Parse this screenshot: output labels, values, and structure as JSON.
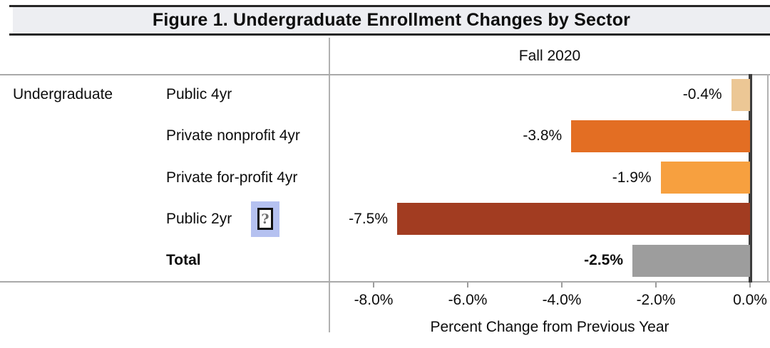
{
  "chart_data": {
    "type": "bar",
    "orientation": "horizontal",
    "title": "Figure 1. Undergraduate Enrollment Changes by Sector",
    "column_header": "Fall 2020",
    "group_label": "Undergraduate",
    "xlabel": "Percent Change from Previous Year",
    "xlim": [
      -9.0,
      0.45
    ],
    "x_ticks": [
      -8,
      -6,
      -4,
      -2,
      0
    ],
    "x_tick_labels": [
      "-8.0%",
      "-6.0%",
      "-4.0%",
      "-2.0%",
      "0.0%"
    ],
    "grid": false,
    "zero_axis": true,
    "legend_position": "none",
    "rows": [
      {
        "label": "Public 4yr",
        "value": -0.4,
        "value_label": "-0.4%",
        "color": "#ecc795",
        "bold": false,
        "icon": null
      },
      {
        "label": "Private nonprofit 4yr",
        "value": -3.8,
        "value_label": "-3.8%",
        "color": "#e36e23",
        "bold": false,
        "icon": null
      },
      {
        "label": "Private for-profit 4yr",
        "value": -1.9,
        "value_label": "-1.9%",
        "color": "#f7a03f",
        "bold": false,
        "icon": null
      },
      {
        "label": "Public 2yr",
        "value": -7.5,
        "value_label": "-7.5%",
        "color": "#a23c21",
        "bold": false,
        "icon": "question-placeholder"
      },
      {
        "label": "Total",
        "value": -2.5,
        "value_label": "-2.5%",
        "color": "#9d9d9d",
        "bold": true,
        "icon": null
      }
    ]
  },
  "icons": {
    "question_placeholder_glyph": "?"
  },
  "colors": {
    "title_band_bg": "#edeef2",
    "title_rule": "#262626",
    "grid_line": "#a9a9a9",
    "zero_axis_line": "#3d3d3d",
    "icon_box_bg": "#b5c1f0"
  }
}
